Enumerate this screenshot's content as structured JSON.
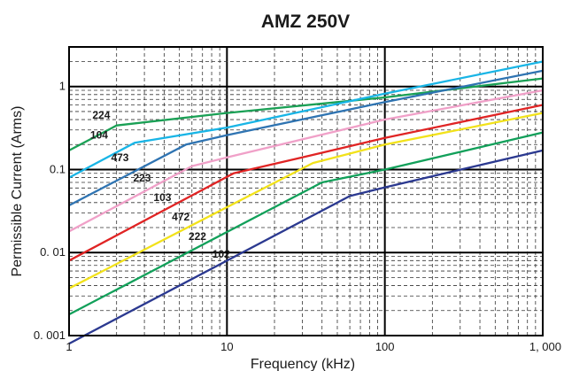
{
  "chart_data": {
    "type": "line",
    "title": "AMZ 250V",
    "xlabel": "Frequency (kHz)",
    "ylabel": "Permissible Current (Arms)",
    "x_scale": "log",
    "y_scale": "log",
    "xlim": [
      1,
      1000
    ],
    "ylim": [
      0.001,
      3
    ],
    "grid": true,
    "legend": "inline labels",
    "x_ticks": [
      {
        "value": 1,
        "label": "1"
      },
      {
        "value": 10,
        "label": "10"
      },
      {
        "value": 100,
        "label": "100"
      },
      {
        "value": 1000,
        "label": "1, 000"
      }
    ],
    "y_ticks": [
      {
        "value": 0.001,
        "label": "0. 001"
      },
      {
        "value": 0.01,
        "label": "0. 01"
      },
      {
        "value": 0.1,
        "label": "0.1"
      },
      {
        "value": 1,
        "label": "1"
      }
    ],
    "series": [
      {
        "name": "224",
        "color": "#1aa055",
        "label_at": [
          1.6,
          0.45
        ],
        "points": [
          [
            1,
            0.17
          ],
          [
            2,
            0.34
          ],
          [
            10,
            0.48
          ],
          [
            100,
            0.74
          ],
          [
            1000,
            1.25
          ]
        ]
      },
      {
        "name": "104",
        "color": "#19b5e6",
        "label_at": [
          1.55,
          0.26
        ],
        "points": [
          [
            1,
            0.08
          ],
          [
            2.6,
            0.21
          ],
          [
            10,
            0.32
          ],
          [
            100,
            0.82
          ],
          [
            1000,
            2.0
          ]
        ]
      },
      {
        "name": "473",
        "color": "#2f74b2",
        "label_at": [
          2.1,
          0.14
        ],
        "points": [
          [
            1,
            0.037
          ],
          [
            5.5,
            0.2
          ],
          [
            10,
            0.26
          ],
          [
            100,
            0.65
          ],
          [
            1000,
            1.55
          ]
        ]
      },
      {
        "name": "223",
        "color": "#f0a0c8",
        "label_at": [
          2.9,
          0.079
        ],
        "points": [
          [
            1,
            0.018
          ],
          [
            6,
            0.11
          ],
          [
            10,
            0.14
          ],
          [
            100,
            0.4
          ],
          [
            1000,
            0.9
          ]
        ]
      },
      {
        "name": "103",
        "color": "#e02424",
        "label_at": [
          3.9,
          0.046
        ],
        "points": [
          [
            1,
            0.008
          ],
          [
            11,
            0.09
          ],
          [
            30,
            0.14
          ],
          [
            100,
            0.24
          ],
          [
            1000,
            0.6
          ]
        ]
      },
      {
        "name": "472",
        "color": "#f2e21a",
        "label_at": [
          5.1,
          0.027
        ],
        "points": [
          [
            1,
            0.0037
          ],
          [
            35,
            0.12
          ],
          [
            100,
            0.2
          ],
          [
            1000,
            0.48
          ]
        ]
      },
      {
        "name": "222",
        "color": "#12a05a",
        "label_at": [
          6.5,
          0.0157
        ],
        "points": [
          [
            1,
            0.0018
          ],
          [
            40,
            0.07
          ],
          [
            100,
            0.1
          ],
          [
            1000,
            0.28
          ]
        ]
      },
      {
        "name": "102",
        "color": "#2b3990",
        "label_at": [
          9.2,
          0.0096
        ],
        "points": [
          [
            1,
            0.0008
          ],
          [
            60,
            0.048
          ],
          [
            100,
            0.061
          ],
          [
            1000,
            0.17
          ]
        ]
      }
    ]
  }
}
